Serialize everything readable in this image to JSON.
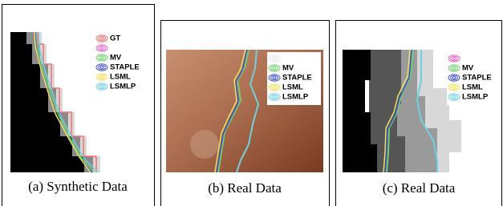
{
  "figure": {
    "panels": [
      {
        "caption": "(a) Synthetic Data",
        "legend": [
          {
            "label": "GT",
            "color": "#f07070"
          },
          {
            "label": null,
            "color": "#e060c0"
          },
          {
            "label": "MV",
            "color": "#70d070"
          },
          {
            "label": "STAPLE",
            "color": "#4050c0"
          },
          {
            "label": "LSML",
            "color": "#f0e060"
          },
          {
            "label": "LSMLP",
            "color": "#70d0e0"
          }
        ]
      },
      {
        "caption": "(b) Real Data",
        "legend": [
          {
            "label": null,
            "color": "#e8e8e8"
          },
          {
            "label": "MV",
            "color": "#70d070"
          },
          {
            "label": "STAPLE",
            "color": "#4050c0"
          },
          {
            "label": "LSML",
            "color": "#f0e060"
          },
          {
            "label": "LSMLP",
            "color": "#70d0e0"
          }
        ]
      },
      {
        "caption": "(c) Real Data",
        "legend": [
          {
            "label": null,
            "color": "#e060c0"
          },
          {
            "label": "MV",
            "color": "#70d070"
          },
          {
            "label": "STAPLE",
            "color": "#4050c0"
          },
          {
            "label": "LSML",
            "color": "#f0e060"
          },
          {
            "label": "LSMLP",
            "color": "#70d0e0"
          }
        ]
      }
    ]
  }
}
